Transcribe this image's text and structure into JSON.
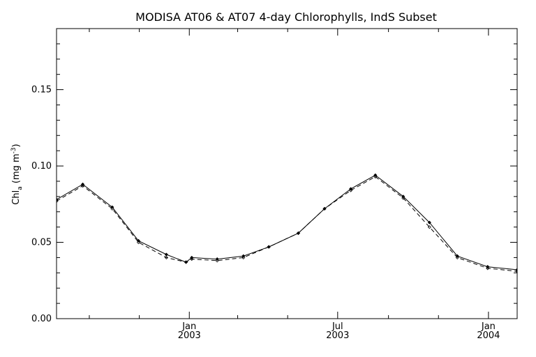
{
  "chart_data": {
    "type": "line",
    "title": "MODISA AT06 & AT07 4-day Chlorophylls, IndS Subset",
    "ylabel_main": "Chl",
    "ylabel_sub": "a",
    "ylabel_units_pre": " (mg m",
    "ylabel_units_sup": "-3",
    "ylabel_units_post": ")",
    "xlabel": "",
    "ylim": [
      0.0,
      0.19
    ],
    "xlim": [
      "2002-07-23",
      "2004-02-05"
    ],
    "y_ticks": [
      0.0,
      0.05,
      0.1,
      0.15
    ],
    "y_tick_labels": [
      "0.00",
      "0.05",
      "0.10",
      "0.15"
    ],
    "x_major_ticks": [
      {
        "date": "2003-01-01",
        "month": "Jan",
        "year": "2003"
      },
      {
        "date": "2003-07-01",
        "month": "Jul",
        "year": "2003"
      },
      {
        "date": "2004-01-01",
        "month": "Jan",
        "year": "2004"
      }
    ],
    "x_minor_ticks": [
      "2002-09-01",
      "2002-11-01",
      "2003-03-01",
      "2003-05-01",
      "2003-09-01",
      "2003-11-01"
    ],
    "grid": false,
    "series": [
      {
        "style": "solid",
        "color": "#000000",
        "points": [
          {
            "x": "2002-07-23",
            "y": 0.078
          },
          {
            "x": "2002-08-24",
            "y": 0.088
          },
          {
            "x": "2002-09-29",
            "y": 0.073
          },
          {
            "x": "2002-10-31",
            "y": 0.051
          },
          {
            "x": "2002-12-04",
            "y": 0.042
          },
          {
            "x": "2002-12-28",
            "y": 0.037
          },
          {
            "x": "2003-01-04",
            "y": 0.04
          },
          {
            "x": "2003-02-04",
            "y": 0.039
          },
          {
            "x": "2003-03-08",
            "y": 0.041
          },
          {
            "x": "2003-04-08",
            "y": 0.047
          },
          {
            "x": "2003-05-14",
            "y": 0.056
          },
          {
            "x": "2003-06-15",
            "y": 0.072
          },
          {
            "x": "2003-07-17",
            "y": 0.085
          },
          {
            "x": "2003-08-16",
            "y": 0.094
          },
          {
            "x": "2003-09-19",
            "y": 0.08
          },
          {
            "x": "2003-10-21",
            "y": 0.063
          },
          {
            "x": "2003-11-24",
            "y": 0.041
          },
          {
            "x": "2003-12-31",
            "y": 0.034
          },
          {
            "x": "2004-02-05",
            "y": 0.032
          }
        ]
      },
      {
        "style": "dashed",
        "color": "#000000",
        "points": [
          {
            "x": "2002-07-23",
            "y": 0.077
          },
          {
            "x": "2002-08-24",
            "y": 0.087
          },
          {
            "x": "2002-09-29",
            "y": 0.072
          },
          {
            "x": "2002-10-31",
            "y": 0.05
          },
          {
            "x": "2002-12-04",
            "y": 0.04
          },
          {
            "x": "2002-12-28",
            "y": 0.037
          },
          {
            "x": "2003-01-04",
            "y": 0.039
          },
          {
            "x": "2003-02-04",
            "y": 0.038
          },
          {
            "x": "2003-03-08",
            "y": 0.04
          },
          {
            "x": "2003-04-08",
            "y": 0.047
          },
          {
            "x": "2003-05-14",
            "y": 0.056
          },
          {
            "x": "2003-06-15",
            "y": 0.072
          },
          {
            "x": "2003-07-17",
            "y": 0.084
          },
          {
            "x": "2003-08-16",
            "y": 0.093
          },
          {
            "x": "2003-09-19",
            "y": 0.079
          },
          {
            "x": "2003-10-21",
            "y": 0.06
          },
          {
            "x": "2003-11-24",
            "y": 0.04
          },
          {
            "x": "2003-12-31",
            "y": 0.033
          },
          {
            "x": "2004-02-05",
            "y": 0.031
          }
        ]
      }
    ]
  }
}
